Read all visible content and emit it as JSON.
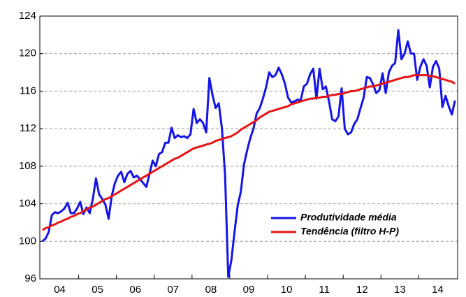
{
  "chart_data": {
    "type": "line",
    "categories": [
      null,
      null,
      null,
      null,
      null,
      null,
      "04",
      null,
      null,
      null,
      null,
      null,
      null,
      null,
      null,
      null,
      null,
      null,
      "05",
      null,
      null,
      null,
      null,
      null,
      null,
      null,
      null,
      null,
      null,
      null,
      "06",
      null,
      null,
      null,
      null,
      null,
      null,
      null,
      null,
      null,
      null,
      null,
      "07",
      null,
      null,
      null,
      null,
      null,
      null,
      null,
      null,
      null,
      null,
      null,
      "08",
      null,
      null,
      null,
      null,
      null,
      null,
      null,
      null,
      null,
      null,
      null,
      "09",
      null,
      null,
      null,
      null,
      null,
      null,
      null,
      null,
      null,
      null,
      null,
      "10",
      null,
      null,
      null,
      null,
      null,
      null,
      null,
      null,
      null,
      null,
      null,
      "11",
      null,
      null,
      null,
      null,
      null,
      null,
      null,
      null,
      null,
      null,
      null,
      "12",
      null,
      null,
      null,
      null,
      null,
      null,
      null,
      null,
      null,
      null,
      null,
      "13",
      null,
      null,
      null,
      null,
      null,
      null,
      null,
      null,
      null,
      null,
      null,
      "14",
      null,
      null,
      null,
      null,
      null
    ],
    "series": [
      {
        "name": "Produtividade média",
        "color": "#1414e6",
        "values": [
          100.0,
          100.3,
          101.0,
          102.8,
          103.1,
          103.0,
          103.2,
          103.5,
          104.1,
          103.0,
          103.0,
          103.5,
          104.2,
          102.9,
          103.6,
          103.0,
          104.5,
          106.7,
          105.0,
          104.5,
          103.9,
          102.4,
          104.8,
          106.2,
          107.0,
          107.4,
          106.3,
          107.2,
          107.5,
          106.8,
          107.0,
          106.6,
          106.2,
          105.8,
          107.2,
          108.6,
          108.0,
          109.3,
          109.5,
          110.5,
          110.5,
          112.1,
          111.0,
          111.3,
          111.1,
          111.2,
          111.0,
          111.4,
          114.1,
          112.6,
          113.0,
          112.6,
          111.6,
          117.4,
          115.6,
          114.2,
          114.7,
          112.0,
          107.0,
          96.2,
          98.0,
          101.0,
          103.8,
          105.3,
          108.2,
          109.7,
          111.0,
          112.0,
          113.6,
          114.2,
          115.2,
          116.4,
          118.0,
          117.5,
          117.7,
          118.5,
          117.8,
          116.8,
          115.3,
          114.8,
          114.9,
          115.1,
          115.0,
          116.5,
          116.8,
          117.8,
          118.4,
          115.2,
          118.4,
          116.2,
          116.5,
          114.9,
          113.0,
          112.8,
          113.3,
          116.3,
          112.0,
          111.4,
          111.6,
          112.5,
          113.0,
          114.2,
          115.3,
          117.5,
          117.4,
          116.7,
          115.8,
          116.1,
          117.9,
          115.8,
          118.0,
          118.7,
          119.0,
          122.5,
          119.4,
          120.0,
          121.3,
          120.0,
          120.0,
          117.2,
          118.6,
          119.4,
          118.7,
          116.4,
          118.6,
          119.2,
          118.4,
          114.3,
          115.5,
          114.4,
          113.5,
          115.0
        ]
      },
      {
        "name": "Tendência (filtro H-P)",
        "color": "#e61414",
        "values": [
          101.2,
          101.4,
          101.5,
          101.7,
          101.8,
          102.0,
          102.1,
          102.3,
          102.4,
          102.6,
          102.7,
          102.9,
          103.0,
          103.2,
          103.4,
          103.6,
          103.7,
          103.9,
          104.1,
          104.3,
          104.5,
          104.6,
          104.8,
          105.0,
          105.2,
          105.4,
          105.6,
          105.8,
          106.0,
          106.2,
          106.4,
          106.6,
          106.8,
          107.0,
          107.2,
          107.4,
          107.6,
          107.8,
          108.0,
          108.2,
          108.4,
          108.6,
          108.8,
          108.9,
          109.1,
          109.3,
          109.5,
          109.7,
          109.9,
          110.0,
          110.1,
          110.2,
          110.3,
          110.4,
          110.5,
          110.7,
          110.8,
          110.9,
          111.0,
          111.1,
          111.2,
          111.4,
          111.6,
          111.9,
          112.1,
          112.3,
          112.5,
          112.7,
          112.9,
          113.2,
          113.4,
          113.6,
          113.8,
          113.9,
          114.0,
          114.1,
          114.2,
          114.3,
          114.4,
          114.6,
          114.7,
          114.8,
          114.9,
          115.0,
          115.1,
          115.2,
          115.2,
          115.3,
          115.3,
          115.4,
          115.4,
          115.5,
          115.6,
          115.6,
          115.7,
          115.7,
          115.8,
          115.9,
          116.0,
          116.0,
          116.1,
          116.2,
          116.3,
          116.4,
          116.5,
          116.5,
          116.6,
          116.7,
          116.8,
          116.9,
          117.0,
          117.1,
          117.2,
          117.3,
          117.4,
          117.5,
          117.5,
          117.6,
          117.7,
          117.7,
          117.7,
          117.7,
          117.7,
          117.6,
          117.6,
          117.5,
          117.4,
          117.3,
          117.2,
          117.1,
          117.0,
          116.8
        ]
      }
    ],
    "ylim": [
      96,
      124
    ],
    "yticks": [
      96,
      100,
      104,
      108,
      112,
      116,
      120,
      124
    ],
    "grid": true,
    "legend": "lower right"
  }
}
